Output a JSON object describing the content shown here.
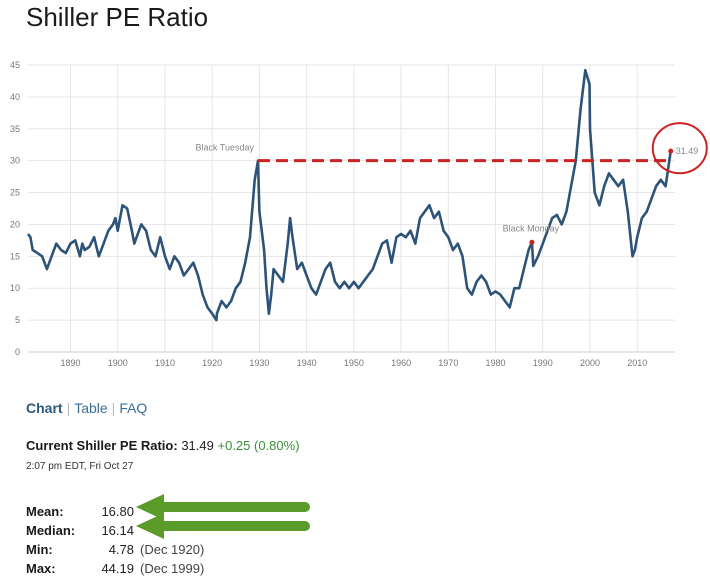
{
  "title": "Shiller PE Ratio",
  "tabs": [
    {
      "label": "Chart",
      "active": true
    },
    {
      "label": "Table",
      "active": false
    },
    {
      "label": "FAQ",
      "active": false
    }
  ],
  "current": {
    "label": "Current Shiller PE Ratio:",
    "value": "31.49",
    "change": "+0.25 (0.80%)",
    "timestamp": "2:07 pm EDT, Fri Oct 27"
  },
  "stats": [
    {
      "label": "Mean:",
      "value": "16.80",
      "date": ""
    },
    {
      "label": "Median:",
      "value": "16.14",
      "date": ""
    },
    {
      "label": "Min:",
      "value": "4.78",
      "date": "(Dec 1920)"
    },
    {
      "label": "Max:",
      "value": "44.19",
      "date": "(Dec 1999)"
    }
  ],
  "colors": {
    "line": "#2e5378",
    "dashed": "#cc2222",
    "marker": "#cc2222",
    "circle": "#cc2222",
    "arrow": "#5a9b2a",
    "grid": "#e6e6e6"
  },
  "chart_data": {
    "type": "line",
    "title": "Shiller PE Ratio",
    "xlabel": "",
    "ylabel": "",
    "xlim": [
      1881,
      2018
    ],
    "ylim": [
      0,
      45
    ],
    "xticks": [
      1890,
      1900,
      1910,
      1920,
      1930,
      1940,
      1950,
      1960,
      1970,
      1980,
      1990,
      2000,
      2010
    ],
    "yticks": [
      0,
      5,
      10,
      15,
      20,
      25,
      30,
      35,
      40,
      45
    ],
    "grid": true,
    "series": [
      {
        "x": [
          1881,
          1881.5,
          1882,
          1883,
          1884,
          1884.5,
          1885,
          1886,
          1887,
          1888,
          1889,
          1890,
          1891,
          1892,
          1892.5,
          1893,
          1894,
          1895,
          1896,
          1897,
          1898,
          1899,
          1899.5,
          1900,
          1901,
          1902,
          1903,
          1903.5,
          1904,
          1905,
          1906,
          1907,
          1908,
          1909,
          1910,
          1911,
          1912,
          1913,
          1914,
          1915,
          1916,
          1917,
          1918,
          1919,
          1920,
          1920.9,
          1921,
          1922,
          1923,
          1924,
          1925,
          1926,
          1927,
          1928,
          1929,
          1929.7,
          1930,
          1931,
          1931.5,
          1932,
          1932.5,
          1933,
          1934,
          1935,
          1936,
          1936.5,
          1937,
          1938,
          1939,
          1940,
          1941,
          1942,
          1943,
          1944,
          1945,
          1946,
          1947,
          1948,
          1949,
          1950,
          1951,
          1952,
          1953,
          1954,
          1955,
          1956,
          1957,
          1958,
          1959,
          1960,
          1961,
          1962,
          1963,
          1964,
          1965,
          1966,
          1967,
          1968,
          1969,
          1970,
          1971,
          1972,
          1973,
          1974,
          1975,
          1976,
          1977,
          1978,
          1979,
          1980,
          1981,
          1982,
          1983,
          1984,
          1985,
          1986,
          1987,
          1987.7,
          1988,
          1989,
          1990,
          1991,
          1992,
          1993,
          1994,
          1995,
          1996,
          1997,
          1998,
          1999,
          1999.9,
          2000,
          2001,
          2002,
          2003,
          2004,
          2005,
          2006,
          2007,
          2008,
          2009,
          2009.5,
          2010,
          2011,
          2012,
          2013,
          2014,
          2015,
          2016,
          2017.1
        ],
        "y": [
          18.5,
          18,
          16,
          15.5,
          15,
          14,
          13,
          15,
          17,
          16,
          15.5,
          17,
          17.5,
          15,
          17,
          16,
          16.5,
          18,
          15,
          17,
          19,
          20,
          21,
          19,
          23,
          22.5,
          19,
          17,
          18,
          20,
          19,
          16,
          15,
          18,
          15,
          13,
          15,
          14,
          12,
          13,
          14,
          12,
          9,
          7,
          6,
          5,
          6,
          8,
          7,
          8,
          10,
          11,
          14,
          18,
          27,
          30,
          22,
          16,
          10,
          6,
          9,
          13,
          12,
          11,
          17,
          21,
          18,
          13,
          14,
          12,
          10,
          9,
          11,
          13,
          14,
          11,
          10,
          11,
          10,
          11,
          10,
          11,
          12,
          13,
          15,
          17,
          17.5,
          14,
          18,
          18.5,
          18,
          19,
          17,
          21,
          22,
          23,
          21,
          22,
          19,
          18,
          16,
          17,
          15,
          10,
          9,
          11,
          12,
          11,
          9,
          9.5,
          9,
          8,
          7,
          10,
          10,
          13,
          16,
          17.2,
          13.5,
          15,
          17,
          19,
          21,
          21.5,
          20,
          22,
          26,
          30,
          38,
          44.19,
          42,
          35,
          25,
          23,
          26,
          28,
          27,
          26,
          27,
          22,
          15,
          16,
          18,
          21,
          22,
          24,
          26,
          27,
          26,
          31.49
        ]
      }
    ],
    "annotations": [
      {
        "label": "Black Tuesday",
        "x": 1929.7,
        "y": 30
      },
      {
        "label": "Black Monday",
        "x": 1987.7,
        "y": 17.2
      },
      {
        "label": "31.49",
        "x": 2017.1,
        "y": 31.49
      }
    ]
  }
}
